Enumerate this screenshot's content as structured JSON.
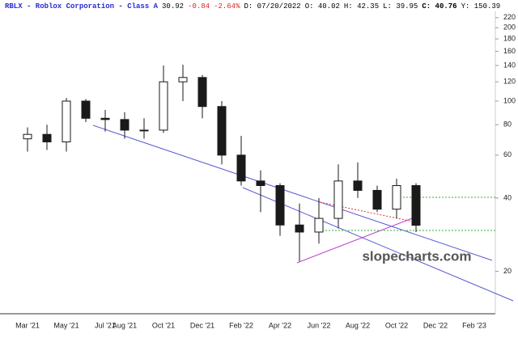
{
  "chart_data": {
    "type": "candlestick",
    "header": [
      {
        "text": "RBLX - Roblox Corporation - Class A",
        "color": "#2a2ad0",
        "bold": true
      },
      {
        "text": "30.92",
        "color": "#000000",
        "bold": false
      },
      {
        "text": "-0.84",
        "color": "#e02020",
        "bold": false
      },
      {
        "text": "-2.64%",
        "color": "#e02020",
        "bold": false
      },
      {
        "text": "D: 07/20/2022",
        "color": "#000000",
        "bold": false
      },
      {
        "text": "O: 40.02",
        "color": "#000000",
        "bold": false
      },
      {
        "text": "H: 42.35",
        "color": "#000000",
        "bold": false
      },
      {
        "text": "L: 39.95",
        "color": "#000000",
        "bold": false
      },
      {
        "text": "C: 40.76",
        "color": "#000000",
        "bold": true
      },
      {
        "text": "Y: 150.39",
        "color": "#000000",
        "bold": false
      }
    ],
    "watermark": "slopecharts.com",
    "categories": [
      "Mar '21",
      null,
      "May '21",
      null,
      "Jul '21",
      "Aug '21",
      null,
      "Oct '21",
      null,
      "Dec '21",
      null,
      "Feb '22",
      null,
      "Apr '22",
      null,
      "Jun '22",
      null,
      "Aug '22",
      null,
      "Oct '22",
      null,
      "Dec '22",
      null,
      "Feb '23"
    ],
    "open": [
      70,
      73,
      68,
      100,
      85,
      84,
      76,
      76,
      120,
      125,
      95,
      60,
      47,
      45,
      31,
      29,
      33,
      47,
      43,
      36,
      45,
      null,
      null,
      null
    ],
    "high": [
      78,
      80,
      103,
      102,
      92,
      90,
      85,
      140,
      141,
      128,
      100,
      72,
      52,
      46,
      38,
      40,
      55,
      56,
      45,
      48,
      46,
      null,
      null,
      null
    ],
    "low": [
      62,
      63,
      62,
      82,
      75,
      70,
      70,
      74,
      100,
      85,
      55,
      45,
      35,
      28,
      22,
      26,
      30,
      40,
      35,
      33,
      29,
      null,
      null,
      null
    ],
    "close": [
      73,
      68,
      100,
      85,
      84,
      76,
      76,
      120,
      125,
      95,
      60,
      47,
      45,
      31,
      29,
      33,
      47,
      43,
      36,
      45,
      30.92,
      null,
      null,
      null
    ],
    "color": "#1a1a1a",
    "log_scale": true,
    "ylim": [
      13.4,
      233.6
    ],
    "yticks": [
      20,
      40,
      60,
      80,
      100,
      120,
      140,
      160,
      180,
      200,
      220
    ]
  }
}
